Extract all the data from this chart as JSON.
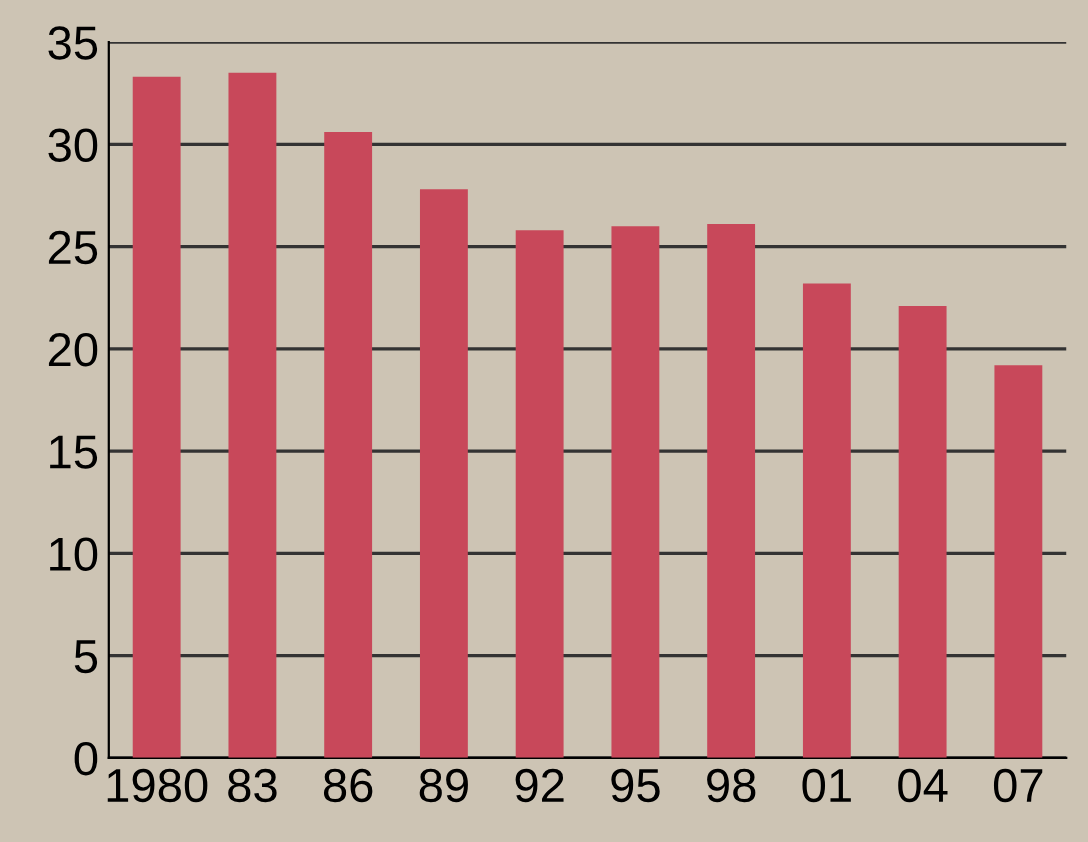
{
  "chart_data": {
    "type": "bar",
    "categories": [
      "1980",
      "83",
      "86",
      "89",
      "92",
      "95",
      "98",
      "01",
      "04",
      "07"
    ],
    "values": [
      33.3,
      33.5,
      30.6,
      27.8,
      25.8,
      26,
      26.1,
      23.2,
      22.1,
      19.2
    ],
    "color": "#c8485a",
    "ylim": [
      0,
      35
    ],
    "yticks": [
      0,
      5,
      10,
      15,
      20,
      25,
      30,
      35
    ],
    "grid": "y"
  }
}
